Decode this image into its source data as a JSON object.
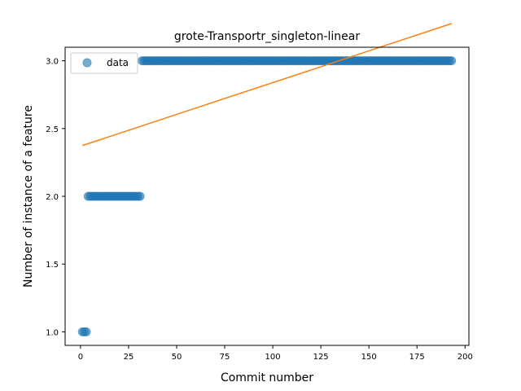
{
  "chart_data": {
    "type": "scatter",
    "title": "grote-Transportr_singleton-linear",
    "xlabel": "Commit number",
    "ylabel": "Number of instance of a feature",
    "xlim": [
      -8,
      202
    ],
    "ylim": [
      0.9,
      3.1
    ],
    "xticks": [
      0,
      25,
      50,
      75,
      100,
      125,
      150,
      175,
      200
    ],
    "yticks": [
      1.0,
      1.5,
      2.0,
      2.5,
      3.0
    ],
    "xtick_labels": [
      "0",
      "25",
      "50",
      "75",
      "100",
      "125",
      "150",
      "175",
      "200"
    ],
    "ytick_labels": [
      "1.0",
      "1.5",
      "2.0",
      "2.5",
      "3.0"
    ],
    "grid": false,
    "legend": {
      "position": "top-left",
      "entries": [
        {
          "label": "data",
          "marker": "circle",
          "color": "#1f77b4"
        }
      ]
    },
    "series": [
      {
        "name": "data",
        "kind": "scatter",
        "color": "#1f77b4",
        "segments": [
          {
            "x_start": 1,
            "x_end": 3,
            "y": 1.0
          },
          {
            "x_start": 4,
            "x_end": 31,
            "y": 2.0
          },
          {
            "x_start": 32,
            "x_end": 193,
            "y": 3.0
          }
        ]
      },
      {
        "kind": "line",
        "color": "#ff7f0e",
        "points": [
          {
            "x": 1,
            "y": 2.375
          },
          {
            "x": 193,
            "y": 3.275
          }
        ]
      }
    ]
  }
}
